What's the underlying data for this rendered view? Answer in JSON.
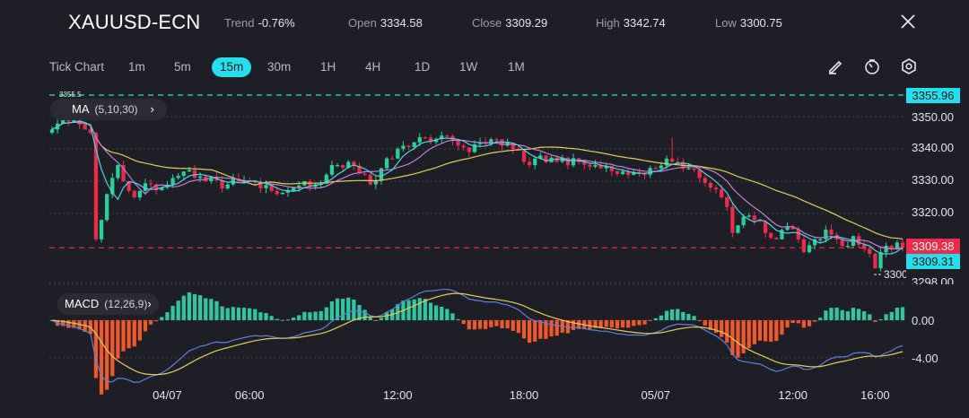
{
  "header": {
    "symbol": "XAUUSD-ECN",
    "trend_label": "Trend",
    "trend_value": "-0.76%",
    "open_label": "Open",
    "open_value": "3334.58",
    "close_label": "Close",
    "close_value": "3309.29",
    "high_label": "High",
    "high_value": "3342.74",
    "low_label": "Low",
    "low_value": "3300.75",
    "close_icon": "close-icon"
  },
  "toolbar": {
    "timeframes": [
      "Tick Chart",
      "1m",
      "5m",
      "15m",
      "30m",
      "1H",
      "4H",
      "1D",
      "1W",
      "1M"
    ],
    "active": "15m",
    "tools": [
      "draw-pencil-icon",
      "timer-icon",
      "settings-icon"
    ]
  },
  "indicators": {
    "ma_label": "MA",
    "ma_params": "(5,10,30)",
    "macd_label": "MACD",
    "macd_params": "(12,26,9)"
  },
  "colors": {
    "bg": "#1e1f26",
    "up": "#22d39c",
    "down": "#f0284a",
    "ma5": "#4dd6e6",
    "ma10": "#c47ddb",
    "ma30": "#e3cf55",
    "macd": "#5b80e6",
    "signal": "#e3cf55",
    "hist_pos": "#2ec7a0",
    "hist_neg": "#f0582a",
    "accent": "#1fe2f0"
  },
  "chart_data": {
    "type": "candlestick",
    "symbol": "XAUUSD-ECN",
    "interval": "15m",
    "price_axis": [
      "3350.00",
      "3340.00",
      "3330.00",
      "3320.00",
      "3298.00"
    ],
    "ylim": [
      3296,
      3356
    ],
    "macd_axis": [
      "0.00",
      "-4.00"
    ],
    "x_ticks": [
      {
        "label": "04/07",
        "index": 21
      },
      {
        "label": "06:00",
        "index": 36
      },
      {
        "label": "12:00",
        "index": 63
      },
      {
        "label": "18:00",
        "index": 86
      },
      {
        "label": "05/07",
        "index": 110
      },
      {
        "label": "12:00",
        "index": 135
      },
      {
        "label": "16:00",
        "index": 150
      }
    ],
    "close_keypoints": [
      [
        0,
        3346
      ],
      [
        2,
        3350
      ],
      [
        4,
        3349
      ],
      [
        6,
        3346
      ],
      [
        7,
        3345
      ],
      [
        8,
        3312
      ],
      [
        9,
        3318
      ],
      [
        10,
        3326
      ],
      [
        11,
        3331
      ],
      [
        12,
        3335
      ],
      [
        13,
        3330
      ],
      [
        14,
        3327
      ],
      [
        15,
        3325
      ],
      [
        16,
        3327
      ],
      [
        18,
        3329
      ],
      [
        20,
        3328
      ],
      [
        22,
        3331
      ],
      [
        24,
        3333
      ],
      [
        26,
        3331
      ],
      [
        28,
        3330
      ],
      [
        32,
        3329
      ],
      [
        36,
        3330
      ],
      [
        40,
        3327
      ],
      [
        44,
        3328
      ],
      [
        46,
        3330
      ],
      [
        48,
        3329
      ],
      [
        50,
        3332
      ],
      [
        52,
        3335
      ],
      [
        54,
        3336
      ],
      [
        57,
        3332
      ],
      [
        58,
        3329
      ],
      [
        60,
        3334
      ],
      [
        62,
        3337
      ],
      [
        64,
        3341
      ],
      [
        66,
        3342
      ],
      [
        70,
        3343
      ],
      [
        72,
        3344
      ],
      [
        74,
        3341
      ],
      [
        76,
        3339
      ],
      [
        78,
        3342
      ],
      [
        80,
        3343
      ],
      [
        82,
        3341
      ],
      [
        84,
        3340
      ],
      [
        86,
        3336
      ],
      [
        88,
        3337
      ],
      [
        92,
        3336
      ],
      [
        96,
        3336
      ],
      [
        100,
        3334
      ],
      [
        104,
        3333
      ],
      [
        108,
        3332
      ],
      [
        110,
        3334
      ],
      [
        112,
        3337
      ],
      [
        114,
        3336
      ],
      [
        116,
        3334
      ],
      [
        118,
        3331
      ],
      [
        120,
        3328
      ],
      [
        122,
        3325
      ],
      [
        123,
        3322
      ],
      [
        124,
        3314
      ],
      [
        126,
        3319
      ],
      [
        128,
        3318
      ],
      [
        130,
        3314
      ],
      [
        132,
        3312
      ],
      [
        134,
        3316
      ],
      [
        136,
        3312
      ],
      [
        137,
        3308
      ],
      [
        139,
        3312
      ],
      [
        141,
        3315
      ],
      [
        143,
        3312
      ],
      [
        145,
        3310
      ],
      [
        146,
        3313
      ],
      [
        148,
        3309
      ],
      [
        150,
        3303
      ],
      [
        151,
        3308
      ],
      [
        152,
        3310
      ],
      [
        154,
        3311
      ],
      [
        155,
        3309.38
      ]
    ],
    "max_marker": "3355.5",
    "min_marker": "3300",
    "ask_line": "3355.96",
    "last_price": "3309.38",
    "bid_price": "3309.31"
  }
}
